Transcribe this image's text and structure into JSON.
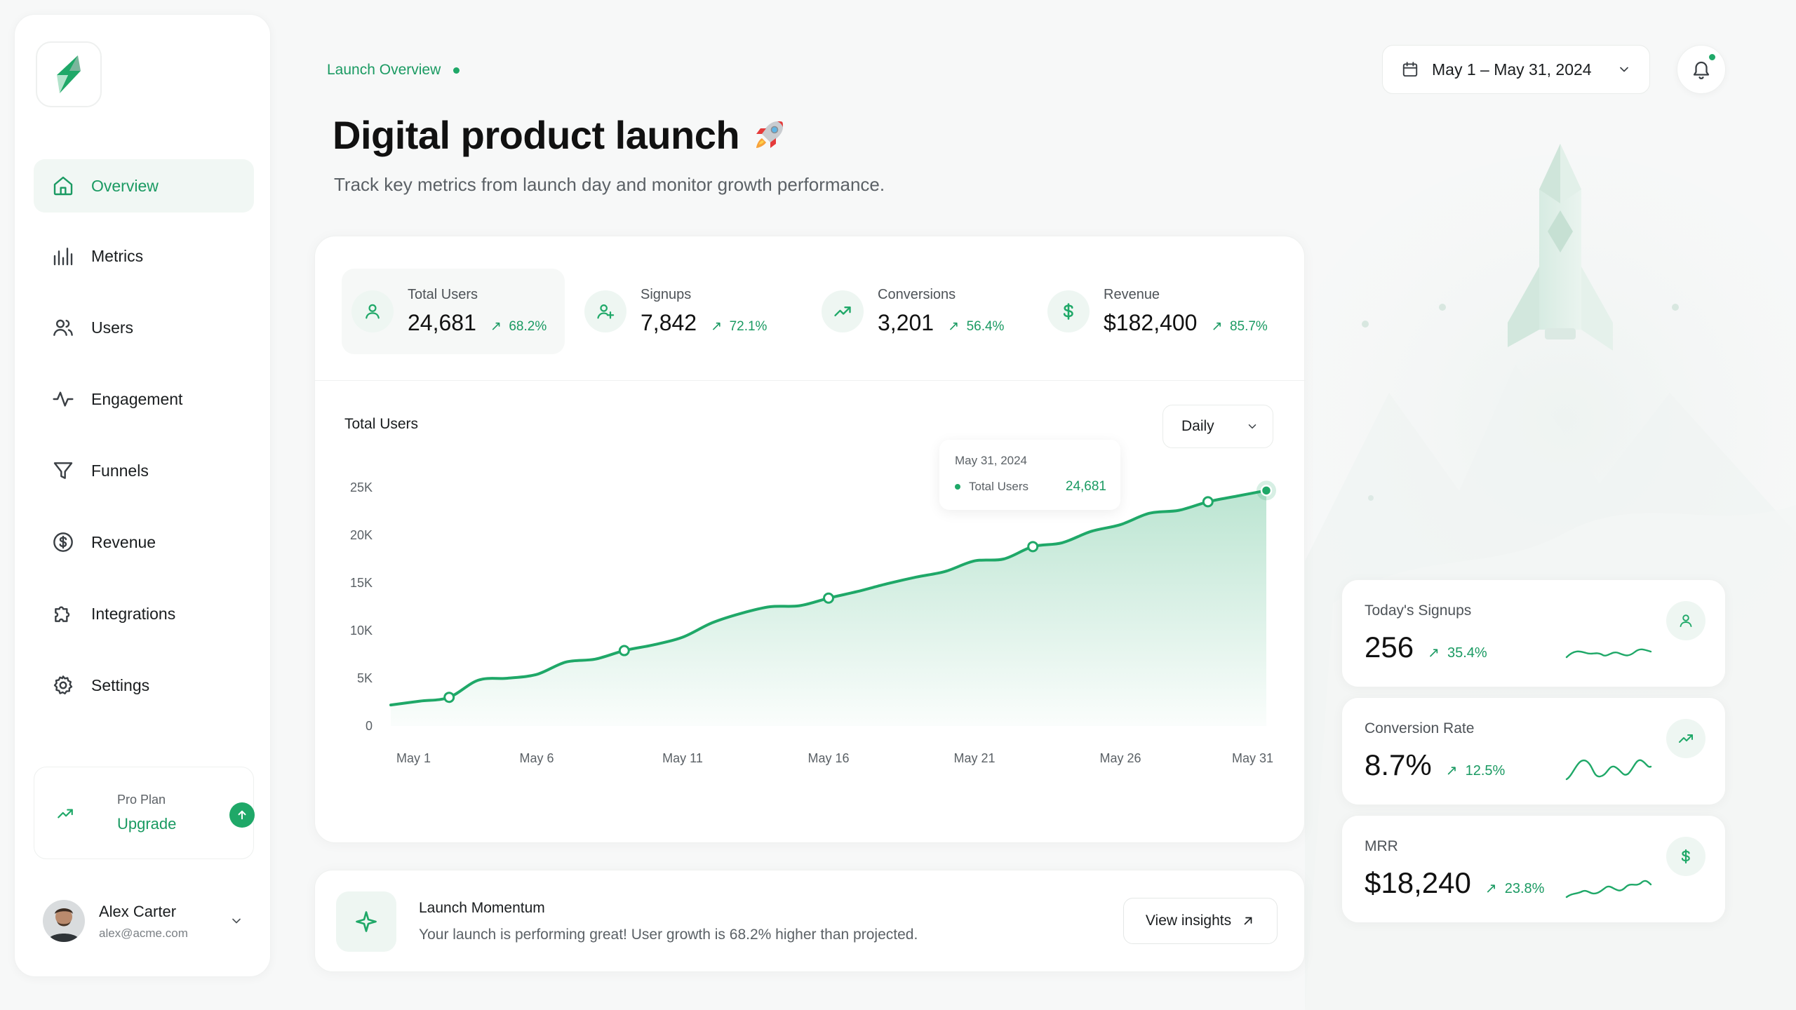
{
  "sidebar": {
    "items": [
      {
        "label": "Overview",
        "icon": "home-icon",
        "active": true
      },
      {
        "label": "Metrics",
        "icon": "bar-chart-icon"
      },
      {
        "label": "Users",
        "icon": "users-icon"
      },
      {
        "label": "Engagement",
        "icon": "activity-icon"
      },
      {
        "label": "Funnels",
        "icon": "funnel-icon"
      },
      {
        "label": "Revenue",
        "icon": "dollar-circle-icon"
      },
      {
        "label": "Integrations",
        "icon": "puzzle-icon"
      },
      {
        "label": "Settings",
        "icon": "gear-icon"
      }
    ],
    "plan": {
      "title": "Pro Plan",
      "link": "Upgrade"
    },
    "user": {
      "name": "Alex Carter",
      "email": "alex@acme.com"
    }
  },
  "header": {
    "breadcrumb": "Launch Overview",
    "title": "Digital product launch",
    "subtitle": "Track key metrics from launch day and monitor growth performance.",
    "date_range": "May 1 – May 31, 2024"
  },
  "kpis": [
    {
      "label": "Total Users",
      "value": "24,681",
      "delta": "68.2%",
      "icon": "user-icon"
    },
    {
      "label": "Signups",
      "value": "7,842",
      "delta": "72.1%",
      "icon": "user-plus-icon"
    },
    {
      "label": "Conversions",
      "value": "3,201",
      "delta": "56.4%",
      "icon": "trend-up-icon"
    },
    {
      "label": "Revenue",
      "value": "$182,400",
      "delta": "85.7%",
      "icon": "dollar-icon"
    }
  ],
  "chart": {
    "title": "Total Users",
    "granularity": "Daily",
    "tooltip": {
      "date": "May 31, 2024",
      "series": "Total Users",
      "value": "24,681"
    }
  },
  "chart_data": {
    "type": "area",
    "title": "Total Users",
    "x_ticks": [
      "May 1",
      "May 6",
      "May 11",
      "May 16",
      "May 21",
      "May 26",
      "May 31"
    ],
    "y_ticks": [
      "0",
      "5K",
      "10K",
      "15K",
      "20K",
      "25K"
    ],
    "ylim": [
      0,
      25000
    ],
    "xlim": [
      1,
      31
    ],
    "series": [
      {
        "x": [
          1,
          2,
          3,
          4,
          5,
          6,
          7,
          8,
          9,
          10,
          11,
          12,
          13,
          14,
          15,
          16,
          17,
          18,
          19,
          20,
          21,
          22,
          23,
          24,
          25,
          26,
          27,
          28,
          29,
          30,
          31
        ],
        "y": [
          2200,
          2600,
          3000,
          4800,
          5000,
          5400,
          6700,
          7000,
          7900,
          8500,
          9300,
          10800,
          11800,
          12500,
          12600,
          13400,
          14100,
          14900,
          15600,
          16200,
          17300,
          17500,
          18800,
          19200,
          20400,
          21100,
          22300,
          22600,
          23500,
          24100,
          24681
        ],
        "markers": [
          3,
          9,
          16,
          23,
          29,
          31
        ]
      }
    ],
    "grid": false,
    "color": "#1fa868"
  },
  "banner": {
    "title": "Launch Momentum",
    "text": "Your launch is performing great! User growth is 68.2% higher than projected.",
    "button": "View insights"
  },
  "stats": [
    {
      "label": "Today's Signups",
      "value": "256",
      "delta": "35.4%",
      "icon": "user-icon"
    },
    {
      "label": "Conversion Rate",
      "value": "8.7%",
      "delta": "12.5%",
      "icon": "trend-up-icon"
    },
    {
      "label": "MRR",
      "value": "$18,240",
      "delta": "23.8%",
      "icon": "dollar-icon"
    }
  ],
  "colors": {
    "accent": "#1fa868",
    "accent_text": "#1a9a62"
  }
}
